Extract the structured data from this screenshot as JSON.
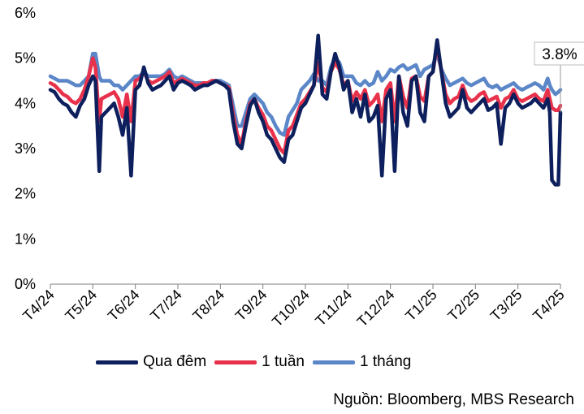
{
  "chart_data": {
    "type": "line",
    "title": "",
    "xlabel": "",
    "ylabel": "",
    "y_unit": "%",
    "ylim": [
      0,
      6
    ],
    "yticks": [
      0,
      1,
      2,
      3,
      4,
      5,
      6
    ],
    "ytick_labels": [
      "0%",
      "1%",
      "2%",
      "3%",
      "4%",
      "5%",
      "6%"
    ],
    "x_tick_labels": [
      "T4/24",
      "T5/24",
      "T6/24",
      "T7/24",
      "T8/24",
      "T9/24",
      "T10/24",
      "T11/24",
      "T12/24",
      "T1/25",
      "T2/25",
      "T3/25",
      "T4/25"
    ],
    "grid": false,
    "legend_position": "bottom",
    "annotation": {
      "text": "3.8%",
      "series": "Qua đêm",
      "x": 12.0,
      "y": 3.8
    },
    "source": "Nguồn: Bloomberg, MBS Research",
    "series": [
      {
        "name": "Qua đêm",
        "color": "#0d1f5c",
        "x": [
          0.0,
          0.1,
          0.2,
          0.3,
          0.4,
          0.5,
          0.6,
          0.7,
          0.8,
          0.9,
          1.0,
          1.06,
          1.15,
          1.2,
          1.3,
          1.4,
          1.5,
          1.6,
          1.7,
          1.8,
          1.9,
          2.0,
          2.1,
          2.2,
          2.3,
          2.4,
          2.5,
          2.6,
          2.7,
          2.8,
          2.9,
          3.0,
          3.1,
          3.2,
          3.3,
          3.4,
          3.5,
          3.6,
          3.7,
          3.8,
          3.9,
          4.0,
          4.1,
          4.2,
          4.3,
          4.4,
          4.5,
          4.6,
          4.7,
          4.8,
          4.9,
          5.0,
          5.1,
          5.2,
          5.3,
          5.4,
          5.5,
          5.6,
          5.7,
          5.8,
          5.9,
          6.0,
          6.1,
          6.2,
          6.3,
          6.4,
          6.5,
          6.6,
          6.7,
          6.8,
          6.9,
          7.0,
          7.1,
          7.2,
          7.3,
          7.4,
          7.5,
          7.6,
          7.7,
          7.8,
          7.9,
          8.0,
          8.1,
          8.2,
          8.3,
          8.4,
          8.5,
          8.6,
          8.7,
          8.8,
          8.9,
          9.0,
          9.1,
          9.2,
          9.3,
          9.4,
          9.5,
          9.6,
          9.7,
          9.8,
          9.9,
          10.0,
          10.1,
          10.2,
          10.3,
          10.4,
          10.5,
          10.6,
          10.7,
          10.8,
          10.9,
          11.0,
          11.1,
          11.2,
          11.3,
          11.4,
          11.5,
          11.6,
          11.7,
          11.75,
          11.8,
          11.88,
          11.95,
          12.0
        ],
        "y": [
          4.3,
          4.25,
          4.1,
          4.0,
          3.95,
          3.8,
          3.7,
          3.95,
          4.1,
          4.4,
          4.6,
          4.5,
          2.5,
          3.7,
          3.8,
          3.9,
          4.0,
          3.7,
          3.3,
          3.9,
          2.4,
          4.3,
          4.4,
          4.8,
          4.45,
          4.3,
          4.35,
          4.4,
          4.5,
          4.6,
          4.3,
          4.45,
          4.5,
          4.45,
          4.4,
          4.3,
          4.35,
          4.4,
          4.4,
          4.45,
          4.5,
          4.45,
          4.4,
          4.3,
          3.6,
          3.1,
          3.0,
          3.5,
          3.95,
          4.1,
          3.8,
          3.6,
          3.3,
          3.2,
          3.0,
          2.8,
          2.7,
          3.2,
          3.3,
          3.6,
          3.9,
          4.0,
          4.2,
          4.4,
          5.5,
          4.2,
          4.1,
          4.7,
          5.1,
          4.8,
          4.3,
          4.5,
          3.8,
          4.1,
          3.7,
          4.2,
          3.6,
          3.7,
          3.95,
          2.4,
          4.1,
          4.3,
          2.5,
          4.6,
          3.8,
          3.5,
          4.5,
          4.6,
          3.8,
          3.6,
          4.6,
          4.7,
          5.4,
          4.7,
          4.0,
          3.7,
          3.8,
          3.9,
          4.3,
          3.9,
          3.8,
          3.9,
          4.0,
          4.1,
          3.85,
          3.9,
          4.0,
          3.1,
          3.9,
          4.0,
          4.2,
          4.0,
          3.9,
          3.95,
          4.0,
          4.1,
          4.0,
          3.9,
          4.1,
          3.8,
          2.3,
          2.2,
          2.2,
          3.8
        ]
      },
      {
        "name": "1 tuần",
        "color": "#e8314a",
        "x": [
          0.0,
          0.1,
          0.2,
          0.3,
          0.4,
          0.5,
          0.6,
          0.7,
          0.8,
          0.9,
          1.0,
          1.06,
          1.15,
          1.2,
          1.3,
          1.4,
          1.5,
          1.6,
          1.7,
          1.8,
          1.9,
          2.0,
          2.1,
          2.2,
          2.3,
          2.4,
          2.5,
          2.6,
          2.7,
          2.8,
          2.9,
          3.0,
          3.1,
          3.2,
          3.3,
          3.4,
          3.5,
          3.6,
          3.7,
          3.8,
          3.9,
          4.0,
          4.1,
          4.2,
          4.3,
          4.4,
          4.5,
          4.6,
          4.7,
          4.8,
          4.9,
          5.0,
          5.1,
          5.2,
          5.3,
          5.4,
          5.5,
          5.6,
          5.7,
          5.8,
          5.9,
          6.0,
          6.1,
          6.2,
          6.3,
          6.4,
          6.5,
          6.6,
          6.7,
          6.8,
          6.9,
          7.0,
          7.1,
          7.2,
          7.3,
          7.4,
          7.5,
          7.6,
          7.7,
          7.8,
          7.9,
          8.0,
          8.1,
          8.2,
          8.3,
          8.4,
          8.5,
          8.6,
          8.7,
          8.8,
          8.9,
          9.0,
          9.1,
          9.2,
          9.3,
          9.4,
          9.5,
          9.6,
          9.7,
          9.8,
          9.9,
          10.0,
          10.1,
          10.2,
          10.3,
          10.4,
          10.5,
          10.6,
          10.7,
          10.8,
          10.9,
          11.0,
          11.1,
          11.2,
          11.3,
          11.4,
          11.5,
          11.6,
          11.7,
          11.75,
          11.8,
          11.88,
          11.95,
          12.0
        ],
        "y": [
          4.45,
          4.4,
          4.3,
          4.2,
          4.15,
          4.05,
          4.0,
          4.1,
          4.3,
          4.6,
          5.0,
          4.8,
          3.6,
          4.1,
          4.15,
          4.2,
          4.25,
          4.1,
          3.7,
          4.2,
          3.6,
          4.5,
          4.55,
          4.7,
          4.5,
          4.45,
          4.5,
          4.55,
          4.6,
          4.7,
          4.45,
          4.5,
          4.55,
          4.5,
          4.45,
          4.4,
          4.4,
          4.45,
          4.45,
          4.5,
          4.5,
          4.45,
          4.4,
          4.35,
          3.75,
          3.3,
          3.1,
          3.6,
          4.0,
          4.1,
          3.9,
          3.75,
          3.5,
          3.4,
          3.2,
          3.0,
          2.9,
          3.4,
          3.5,
          3.75,
          4.0,
          4.1,
          4.25,
          4.4,
          4.9,
          4.35,
          4.25,
          4.7,
          4.9,
          4.75,
          4.4,
          4.5,
          4.05,
          4.25,
          4.1,
          4.3,
          3.95,
          4.05,
          4.2,
          3.6,
          4.3,
          4.45,
          3.6,
          4.6,
          4.15,
          3.9,
          4.55,
          4.6,
          4.15,
          4.05,
          4.6,
          4.7,
          5.3,
          4.7,
          4.2,
          4.0,
          4.1,
          4.15,
          4.4,
          4.15,
          4.05,
          4.1,
          4.2,
          4.25,
          4.05,
          4.1,
          4.15,
          3.9,
          4.1,
          4.15,
          4.3,
          4.1,
          4.05,
          4.1,
          4.15,
          4.2,
          4.1,
          4.05,
          4.3,
          4.1,
          3.9,
          3.85,
          3.85,
          3.95
        ]
      },
      {
        "name": "1 tháng",
        "color": "#5b86c8",
        "x": [
          0.0,
          0.1,
          0.2,
          0.3,
          0.4,
          0.5,
          0.6,
          0.7,
          0.8,
          0.9,
          1.0,
          1.06,
          1.15,
          1.2,
          1.3,
          1.4,
          1.5,
          1.6,
          1.7,
          1.8,
          1.9,
          2.0,
          2.1,
          2.2,
          2.3,
          2.4,
          2.5,
          2.6,
          2.7,
          2.8,
          2.9,
          3.0,
          3.1,
          3.2,
          3.3,
          3.4,
          3.5,
          3.6,
          3.7,
          3.8,
          3.9,
          4.0,
          4.1,
          4.2,
          4.3,
          4.4,
          4.5,
          4.6,
          4.7,
          4.8,
          4.9,
          5.0,
          5.1,
          5.2,
          5.3,
          5.4,
          5.5,
          5.6,
          5.7,
          5.8,
          5.9,
          6.0,
          6.1,
          6.2,
          6.3,
          6.4,
          6.5,
          6.6,
          6.7,
          6.8,
          6.9,
          7.0,
          7.1,
          7.2,
          7.3,
          7.4,
          7.5,
          7.6,
          7.7,
          7.8,
          7.9,
          8.0,
          8.1,
          8.2,
          8.3,
          8.4,
          8.5,
          8.6,
          8.7,
          8.8,
          8.9,
          9.0,
          9.1,
          9.2,
          9.3,
          9.4,
          9.5,
          9.6,
          9.7,
          9.8,
          9.9,
          10.0,
          10.1,
          10.2,
          10.3,
          10.4,
          10.5,
          10.6,
          10.7,
          10.8,
          10.9,
          11.0,
          11.1,
          11.2,
          11.3,
          11.4,
          11.5,
          11.6,
          11.7,
          11.75,
          11.8,
          11.88,
          11.95,
          12.0
        ],
        "y": [
          4.6,
          4.55,
          4.5,
          4.5,
          4.5,
          4.45,
          4.4,
          4.4,
          4.5,
          4.6,
          5.1,
          5.1,
          4.6,
          4.5,
          4.5,
          4.5,
          4.4,
          4.4,
          4.3,
          4.4,
          4.5,
          4.6,
          4.6,
          4.7,
          4.6,
          4.6,
          4.6,
          4.6,
          4.65,
          4.75,
          4.6,
          4.55,
          4.6,
          4.55,
          4.5,
          4.45,
          4.45,
          4.45,
          4.45,
          4.5,
          4.5,
          4.5,
          4.45,
          4.4,
          3.95,
          3.5,
          3.5,
          3.8,
          4.1,
          4.2,
          4.1,
          4.0,
          3.8,
          3.7,
          3.5,
          3.35,
          3.3,
          3.7,
          3.85,
          4.0,
          4.3,
          4.4,
          4.5,
          4.65,
          4.5,
          4.5,
          4.4,
          4.8,
          5.0,
          4.9,
          4.6,
          4.6,
          4.6,
          4.45,
          4.4,
          4.5,
          4.4,
          4.45,
          4.7,
          4.5,
          4.6,
          4.75,
          4.7,
          4.8,
          4.85,
          4.75,
          4.8,
          4.85,
          4.6,
          4.75,
          4.8,
          4.85,
          5.1,
          4.75,
          4.55,
          4.4,
          4.45,
          4.5,
          4.55,
          4.45,
          4.4,
          4.45,
          4.5,
          4.55,
          4.4,
          4.35,
          4.4,
          4.3,
          4.35,
          4.4,
          4.45,
          4.35,
          4.3,
          4.35,
          4.4,
          4.45,
          4.4,
          4.3,
          4.55,
          4.4,
          4.3,
          4.2,
          4.25,
          4.3
        ]
      }
    ]
  }
}
